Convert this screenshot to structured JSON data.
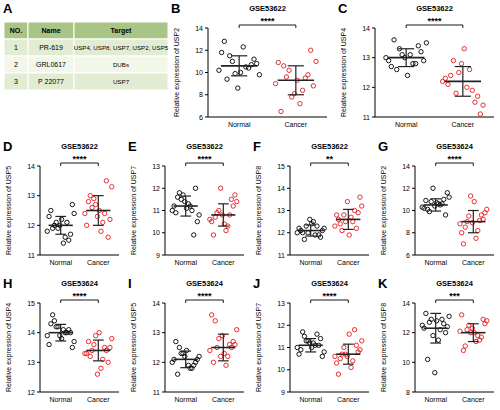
{
  "table": {
    "label": "A",
    "header": [
      "NO.",
      "Name",
      "Target"
    ],
    "rows": [
      [
        "1",
        "PR-619",
        "USP4, USP8, USP7, USP2, USP5"
      ],
      [
        "2",
        "GRL0617",
        "DUBs"
      ],
      [
        "3",
        "P 22077",
        "USP7"
      ]
    ]
  },
  "chart_data": [
    {
      "type": "scatter",
      "panel": "B",
      "title": "GSE53622",
      "y_label": "Relative expression of USP2",
      "annotation": "****",
      "ylim": [
        6,
        14
      ],
      "yticks": [
        6,
        8,
        10,
        12,
        14
      ],
      "series": [
        {
          "name": "Normal",
          "color": "#000000",
          "values": [
            10.2,
            11.0,
            10.5,
            9.8,
            11.5,
            12.3,
            10.8,
            9.4,
            10.0,
            11.2,
            12.8,
            8.6,
            10.7,
            11.8,
            9.9,
            10.4
          ],
          "mean": 10.6,
          "sd": 0.9
        },
        {
          "name": "Cancer",
          "color": "#e41a1c",
          "values": [
            9.0,
            10.2,
            8.4,
            11.0,
            9.6,
            7.2,
            8.8,
            10.6,
            9.3,
            12.0,
            6.5,
            8.1,
            9.8,
            10.9,
            7.8,
            9.5
          ],
          "mean": 9.3,
          "sd": 1.3
        }
      ]
    },
    {
      "type": "scatter",
      "panel": "C",
      "title": "GSE53622",
      "y_label": "Relative expression of USP4",
      "annotation": "****",
      "ylim": [
        11,
        14
      ],
      "yticks": [
        11,
        12,
        13,
        14
      ],
      "series": [
        {
          "name": "Normal",
          "color": "#000000",
          "values": [
            13.0,
            13.3,
            12.8,
            13.5,
            12.6,
            13.1,
            12.9,
            13.6,
            12.4,
            13.2,
            12.7,
            13.0,
            13.4,
            12.9,
            13.1,
            12.8
          ],
          "mean": 13.0,
          "sd": 0.3
        },
        {
          "name": "Cancer",
          "color": "#e41a1c",
          "values": [
            12.2,
            11.8,
            12.6,
            11.4,
            12.9,
            12.0,
            11.1,
            12.4,
            13.3,
            11.7,
            12.1,
            12.8,
            11.5,
            12.3,
            12.5,
            11.9
          ],
          "mean": 12.2,
          "sd": 0.5
        }
      ]
    },
    {
      "type": "scatter",
      "panel": "D",
      "title": "GSE53622",
      "y_label": "Relative expression of USP5",
      "annotation": "****",
      "ylim": [
        11,
        14
      ],
      "yticks": [
        11,
        12,
        13,
        14
      ],
      "series": [
        {
          "name": "Normal",
          "color": "#000000",
          "values": [
            11.8,
            12.1,
            11.6,
            12.4,
            12.0,
            11.4,
            12.7,
            11.9,
            12.2,
            11.7,
            12.5,
            12.0,
            11.5,
            12.3,
            11.9,
            12.1
          ],
          "mean": 12.0,
          "sd": 0.3
        },
        {
          "name": "Cancer",
          "color": "#e41a1c",
          "values": [
            12.4,
            12.9,
            12.1,
            13.3,
            12.6,
            11.8,
            12.2,
            13.0,
            12.5,
            11.6,
            12.8,
            12.3,
            13.5,
            12.0,
            12.7,
            12.4
          ],
          "mean": 12.5,
          "sd": 0.5
        }
      ]
    },
    {
      "type": "scatter",
      "panel": "E",
      "title": "GSE53622",
      "y_label": "Relative expression of USP7",
      "annotation": "****",
      "ylim": [
        9,
        13
      ],
      "yticks": [
        9,
        10,
        11,
        12,
        13
      ],
      "series": [
        {
          "name": "Normal",
          "color": "#000000",
          "values": [
            11.0,
            11.5,
            11.2,
            10.8,
            11.8,
            11.3,
            10.5,
            11.6,
            11.1,
            12.0,
            10.9,
            11.4,
            9.9,
            11.2,
            11.7,
            11.0
          ],
          "mean": 11.2,
          "sd": 0.45
        },
        {
          "name": "Cancer",
          "color": "#e41a1c",
          "values": [
            10.6,
            11.0,
            10.3,
            11.4,
            10.9,
            10.1,
            11.7,
            10.7,
            10.4,
            11.2,
            9.9,
            10.8,
            11.5,
            10.5,
            12.0,
            10.8
          ],
          "mean": 10.8,
          "sd": 0.5
        }
      ]
    },
    {
      "type": "scatter",
      "panel": "F",
      "title": "GSE53622",
      "y_label": "Relative expression of USP8",
      "annotation": "**",
      "ylim": [
        11,
        15
      ],
      "yticks": [
        11,
        12,
        13,
        14,
        15
      ],
      "series": [
        {
          "name": "Normal",
          "color": "#000000",
          "values": [
            12.0,
            12.3,
            11.9,
            12.2,
            11.7,
            12.5,
            12.1,
            12.0,
            12.4,
            11.8,
            12.1,
            12.6,
            11.9,
            12.2,
            12.0,
            12.3
          ],
          "mean": 12.1,
          "sd": 0.25
        },
        {
          "name": "Cancer",
          "color": "#e41a1c",
          "values": [
            12.3,
            12.8,
            12.5,
            13.2,
            12.1,
            12.7,
            13.6,
            12.4,
            11.9,
            12.9,
            12.6,
            13.4,
            12.2,
            12.8,
            12.5,
            13.0
          ],
          "mean": 12.6,
          "sd": 0.45
        }
      ]
    },
    {
      "type": "scatter",
      "panel": "G",
      "title": "GSE53624",
      "y_label": "Relative expression of USP2",
      "annotation": "****",
      "ylim": [
        6,
        14
      ],
      "yticks": [
        6,
        8,
        10,
        12,
        14
      ],
      "series": [
        {
          "name": "Normal",
          "color": "#000000",
          "values": [
            10.3,
            10.8,
            10.5,
            11.2,
            9.9,
            10.6,
            11.6,
            10.1,
            10.7,
            9.6,
            10.9,
            10.4,
            11.0,
            10.2,
            12.0,
            10.6
          ],
          "mean": 10.5,
          "sd": 0.55
        },
        {
          "name": "Cancer",
          "color": "#e41a1c",
          "values": [
            8.8,
            9.5,
            8.2,
            10.1,
            9.0,
            7.5,
            9.8,
            8.5,
            10.8,
            9.2,
            7.0,
            8.9,
            9.6,
            8.0,
            11.3,
            9.1
          ],
          "mean": 9.0,
          "sd": 1.0
        }
      ]
    },
    {
      "type": "scatter",
      "panel": "H",
      "title": "GSE53624",
      "y_label": "Relative expression of USP4",
      "annotation": "****",
      "ylim": [
        12,
        15
      ],
      "yticks": [
        12,
        13,
        14,
        15
      ],
      "series": [
        {
          "name": "Normal",
          "color": "#000000",
          "values": [
            13.9,
            14.2,
            14.0,
            13.7,
            14.4,
            14.1,
            13.5,
            14.6,
            13.8,
            14.0,
            14.3,
            13.9,
            14.1,
            13.6,
            14.2,
            14.0
          ],
          "mean": 14.0,
          "sd": 0.28
        },
        {
          "name": "Cancer",
          "color": "#e41a1c",
          "values": [
            13.3,
            13.6,
            13.1,
            13.8,
            13.4,
            12.8,
            13.5,
            13.2,
            14.0,
            13.0,
            13.7,
            12.6,
            13.4,
            13.3,
            13.9,
            13.5
          ],
          "mean": 13.4,
          "sd": 0.35
        }
      ]
    },
    {
      "type": "scatter",
      "panel": "I",
      "title": "GSE53624",
      "y_label": "Relative expression of USP5",
      "annotation": "****",
      "ylim": [
        11,
        14
      ],
      "yticks": [
        11,
        12,
        13,
        14
      ],
      "series": [
        {
          "name": "Normal",
          "color": "#000000",
          "values": [
            12.0,
            12.3,
            11.8,
            12.2,
            12.5,
            11.9,
            12.1,
            11.6,
            12.4,
            12.0,
            12.7,
            12.2,
            11.9,
            12.1,
            12.3,
            11.8
          ],
          "mean": 12.1,
          "sd": 0.28
        },
        {
          "name": "Cancer",
          "color": "#e41a1c",
          "values": [
            12.4,
            12.8,
            12.2,
            13.1,
            12.5,
            11.9,
            12.6,
            13.4,
            12.3,
            12.7,
            12.0,
            12.9,
            12.5,
            13.6,
            12.2,
            12.6
          ],
          "mean": 12.5,
          "sd": 0.45
        }
      ]
    },
    {
      "type": "scatter",
      "panel": "J",
      "title": "GSE53624",
      "y_label": "Relative expression of USP7",
      "annotation": "****",
      "ylim": [
        9,
        13
      ],
      "yticks": [
        9,
        10,
        11,
        12,
        13
      ],
      "series": [
        {
          "name": "Normal",
          "color": "#000000",
          "values": [
            11.0,
            11.3,
            11.1,
            10.8,
            11.5,
            11.2,
            10.6,
            11.7,
            11.0,
            11.4,
            10.9,
            11.2,
            11.1,
            10.7,
            11.3,
            11.6
          ],
          "mean": 11.1,
          "sd": 0.3
        },
        {
          "name": "Cancer",
          "color": "#e41a1c",
          "values": [
            10.6,
            11.0,
            10.4,
            11.3,
            10.7,
            10.1,
            10.9,
            10.5,
            11.6,
            10.8,
            9.8,
            10.6,
            11.1,
            10.3,
            10.7,
            11.8
          ],
          "mean": 10.7,
          "sd": 0.45
        }
      ]
    },
    {
      "type": "scatter",
      "panel": "K",
      "title": "GSE53624",
      "y_label": "Relative expression of USP8",
      "annotation": "***",
      "ylim": [
        8,
        14
      ],
      "yticks": [
        8,
        10,
        12,
        14
      ],
      "series": [
        {
          "name": "Normal",
          "color": "#000000",
          "values": [
            12.5,
            12.9,
            12.2,
            13.1,
            12.7,
            11.5,
            12.4,
            10.2,
            12.8,
            12.0,
            13.3,
            9.3,
            12.6,
            12.3,
            11.8,
            12.9
          ],
          "mean": 12.3,
          "sd": 1.0
        },
        {
          "name": "Cancer",
          "color": "#e41a1c",
          "values": [
            12.1,
            12.5,
            11.8,
            12.8,
            12.2,
            11.4,
            12.6,
            11.1,
            12.0,
            12.9,
            10.8,
            12.3,
            11.7,
            13.2,
            12.0,
            11.5
          ],
          "mean": 12.0,
          "sd": 0.6
        }
      ]
    }
  ]
}
